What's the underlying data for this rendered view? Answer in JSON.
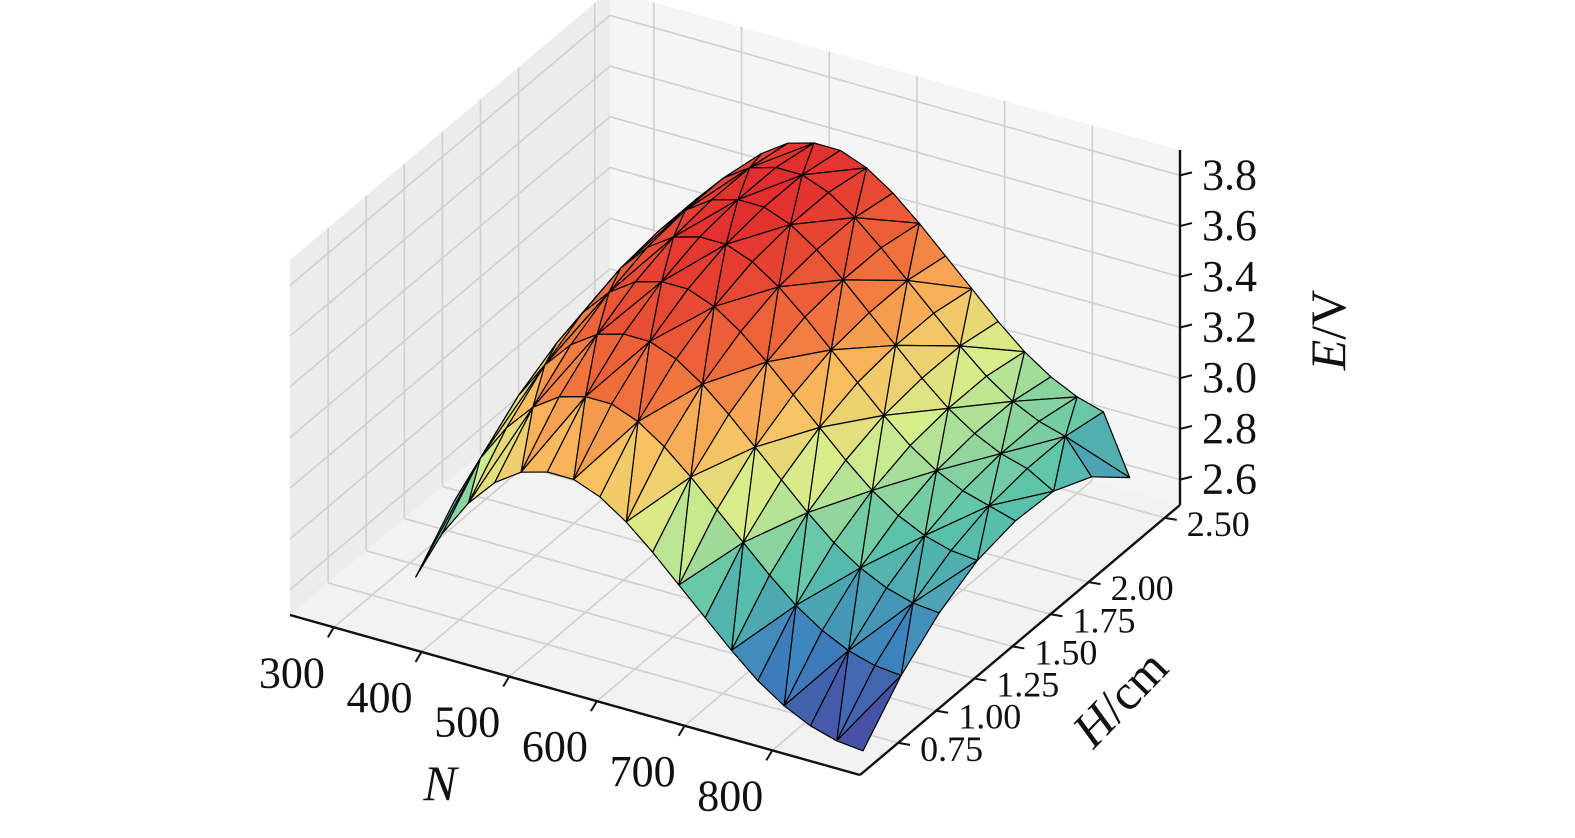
{
  "chart_data": {
    "type": "surface3d",
    "title": "",
    "xlabel_var": "N",
    "ylabel_var": "H",
    "ylabel_unit": "/cm",
    "zlabel_var": "E",
    "zlabel_unit": "/V",
    "x_ticks": [
      "300",
      "400",
      "500",
      "600",
      "700",
      "800"
    ],
    "y_ticks": [
      "0.75",
      "1.00",
      "1.25",
      "1.50",
      "1.75",
      "2.00",
      "2.50"
    ],
    "z_ticks": [
      "2.6",
      "2.8",
      "3.0",
      "3.2",
      "3.4",
      "3.6",
      "3.8"
    ],
    "xlim": [
      250,
      900
    ],
    "ylim": [
      0.5,
      2.6
    ],
    "zlim": [
      2.5,
      3.9
    ],
    "grid": true,
    "colormap": "spectral",
    "colors": {
      "low": "#4b3f9c",
      "mid": "#e8f08a",
      "high": "#e83a2e",
      "mesh_lines": "#000000",
      "pane": "#f2f2f2",
      "grid": "#cfcfcf"
    },
    "surface": {
      "N": [
        350,
        380,
        410,
        440,
        470,
        500,
        530,
        560,
        590,
        620,
        650,
        680,
        710,
        740,
        770,
        800,
        830,
        860
      ],
      "H": [
        0.75,
        1.0,
        1.25,
        1.5,
        1.75,
        2.0,
        2.25,
        2.5
      ],
      "E": [
        [
          2.62,
          2.79,
          2.91,
          2.99,
          3.04,
          3.06,
          3.06,
          3.03
        ],
        [
          2.82,
          2.99,
          3.11,
          3.19,
          3.24,
          3.26,
          3.26,
          3.23
        ],
        [
          2.97,
          3.14,
          3.26,
          3.34,
          3.39,
          3.41,
          3.41,
          3.38
        ],
        [
          3.08,
          3.25,
          3.37,
          3.45,
          3.5,
          3.52,
          3.52,
          3.49
        ],
        [
          3.15,
          3.32,
          3.44,
          3.52,
          3.57,
          3.59,
          3.59,
          3.56
        ],
        [
          3.18,
          3.35,
          3.47,
          3.55,
          3.6,
          3.62,
          3.62,
          3.59
        ],
        [
          3.18,
          3.35,
          3.47,
          3.55,
          3.6,
          3.62,
          3.62,
          3.59
        ],
        [
          3.14,
          3.31,
          3.43,
          3.51,
          3.56,
          3.58,
          3.58,
          3.55
        ],
        [
          3.07,
          3.24,
          3.36,
          3.44,
          3.49,
          3.51,
          3.51,
          3.48
        ],
        [
          2.98,
          3.15,
          3.27,
          3.35,
          3.4,
          3.42,
          3.42,
          3.39
        ],
        [
          2.88,
          3.05,
          3.17,
          3.25,
          3.3,
          3.32,
          3.32,
          3.29
        ],
        [
          2.78,
          2.95,
          3.07,
          3.15,
          3.2,
          3.22,
          3.22,
          3.19
        ],
        [
          2.68,
          2.85,
          2.97,
          3.05,
          3.1,
          3.12,
          3.12,
          3.09
        ],
        [
          2.59,
          2.76,
          2.88,
          2.96,
          3.01,
          3.03,
          3.03,
          3.0
        ],
        [
          2.52,
          2.69,
          2.81,
          2.89,
          2.94,
          2.96,
          2.96,
          2.93
        ],
        [
          2.47,
          2.64,
          2.76,
          2.84,
          2.89,
          2.91,
          2.91,
          2.88
        ],
        [
          2.44,
          2.61,
          2.73,
          2.81,
          2.86,
          2.88,
          2.88,
          2.85
        ],
        [
          2.43,
          2.6,
          2.72,
          2.8,
          2.83,
          2.82,
          2.75,
          2.62
        ]
      ]
    }
  }
}
